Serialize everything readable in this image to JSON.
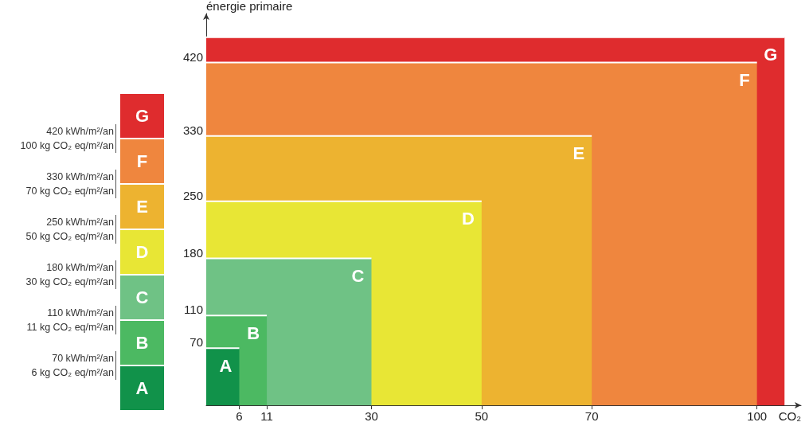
{
  "chart_data": {
    "type": "area",
    "xlabel": "CO₂",
    "ylabel": "énergie primaire",
    "xlim": [
      0,
      108
    ],
    "ylim": [
      0,
      480
    ],
    "xticks": [
      6,
      11,
      30,
      50,
      70,
      100
    ],
    "yticks": [
      70,
      110,
      180,
      250,
      330,
      420
    ],
    "legend": false,
    "series": [
      {
        "name": "A",
        "color": "#11924a",
        "x": [
          0,
          6
        ],
        "values": [
          70,
          70
        ]
      },
      {
        "name": "B",
        "color": "#4cb962",
        "x": [
          0,
          11
        ],
        "values": [
          110,
          110
        ]
      },
      {
        "name": "C",
        "color": "#6fc285",
        "x": [
          0,
          30
        ],
        "values": [
          180,
          180
        ]
      },
      {
        "name": "D",
        "color": "#e8e635",
        "x": [
          0,
          50
        ],
        "values": [
          250,
          250
        ]
      },
      {
        "name": "E",
        "color": "#edb330",
        "x": [
          0,
          70
        ],
        "values": [
          330,
          330
        ]
      },
      {
        "name": "F",
        "color": "#ef863e",
        "x": [
          0,
          100
        ],
        "values": [
          420,
          420
        ]
      },
      {
        "name": "G",
        "color": "#df2c2e",
        "x": [
          0,
          105
        ],
        "values": [
          451,
          451
        ]
      }
    ],
    "annotations": [
      "420 kWh/m²/an\n100 kg CO₂ eq/m²/an",
      "330 kWh/m²/an\n70 kg CO₂ eq/m²/an",
      "250 kWh/m²/an\n50 kg CO₂ eq/m²/an",
      "180 kWh/m²/an\n30 kg CO₂ eq/m²/an",
      "110 kWh/m²/an\n11 kg CO₂ eq/m²/an",
      "70 kWh/m²/an\n6 kg CO₂ eq/m²/an"
    ]
  }
}
